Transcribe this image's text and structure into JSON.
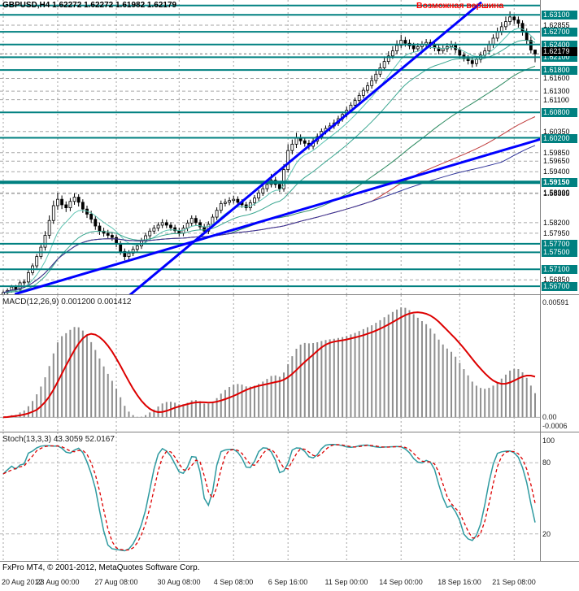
{
  "header": {
    "symbol_period": "GBPUSD,H4",
    "ohlc": "1.62272 1.62272 1.61982 1.62179"
  },
  "annotation": {
    "text": "Возможная вершина",
    "color": "#ff0000"
  },
  "footer": {
    "copyright": "FxPro MT4, © 2001-2012, MetaQuotes Software Corp."
  },
  "colors": {
    "hline": "#008080",
    "trend": "#0000ff",
    "grid": "#a6a6a6",
    "current_line": "#707070",
    "bull": "#ffffff",
    "bear": "#000000",
    "wick": "#000000",
    "border": "#808080",
    "macd_hist": "#8f8f8f",
    "macd_signal": "#dd0000",
    "macd_zero": "#b0b0b0",
    "stoch_main": "#2e9aa0",
    "stoch_signal": "#dd0000",
    "stoch_level": "#b5b5b5"
  },
  "price_axis": {
    "min": 1.5651,
    "max": 1.6345,
    "labels": [
      {
        "p": 1.6332,
        "t": "",
        "s": "l"
      },
      {
        "p": 1.631,
        "t": "1.63100",
        "s": "l"
      },
      {
        "p": 1.62855,
        "t": "1.62855",
        "s": "g"
      },
      {
        "p": 1.627,
        "t": "1.62700",
        "s": "l"
      },
      {
        "p": 1.624,
        "t": "1.62400",
        "s": "l"
      },
      {
        "p": 1.62179,
        "t": "1.62179",
        "s": "c"
      },
      {
        "p": 1.621,
        "t": "1.62100",
        "s": "l"
      },
      {
        "p": 1.618,
        "t": "1.61800",
        "s": "l"
      },
      {
        "p": 1.616,
        "t": "1.61600",
        "s": "g"
      },
      {
        "p": 1.613,
        "t": "1.61300",
        "s": "g"
      },
      {
        "p": 1.611,
        "t": "1.61100",
        "s": "g"
      },
      {
        "p": 1.608,
        "t": "1.60800",
        "s": "l"
      },
      {
        "p": 1.6035,
        "t": "1.60350",
        "s": "g"
      },
      {
        "p": 1.602,
        "t": "1.60200",
        "s": "l"
      },
      {
        "p": 1.5985,
        "t": "1.59850",
        "s": "g"
      },
      {
        "p": 1.5965,
        "t": "1.59650",
        "s": "g"
      },
      {
        "p": 1.594,
        "t": "1.59400",
        "s": "g"
      },
      {
        "p": 1.5915,
        "t": "1.59150",
        "s": "b"
      },
      {
        "p": 1.589,
        "t": "1.58900",
        "s": "g"
      },
      {
        "p": 1.58885,
        "t": "1.58885",
        "s": "g"
      },
      {
        "p": 1.582,
        "t": "1.58200",
        "s": "g"
      },
      {
        "p": 1.5795,
        "t": "1.57950",
        "s": "g"
      },
      {
        "p": 1.577,
        "t": "1.57700",
        "s": "l"
      },
      {
        "p": 1.575,
        "t": "1.57500",
        "s": "l"
      },
      {
        "p": 1.571,
        "t": "1.57100",
        "s": "l"
      },
      {
        "p": 1.5685,
        "t": "1.56850",
        "s": "g"
      },
      {
        "p": 1.567,
        "t": "1.56700",
        "s": "l"
      }
    ]
  },
  "time_axis": [
    {
      "t": "20 Aug 2012",
      "i": 0
    },
    {
      "t": "23 Aug 00:00",
      "i": 13
    },
    {
      "t": "27 Aug 08:00",
      "i": 27
    },
    {
      "t": "30 Aug 08:00",
      "i": 42
    },
    {
      "t": "4 Sep 08:00",
      "i": 55
    },
    {
      "t": "6 Sep 16:00",
      "i": 68
    },
    {
      "t": "11 Sep 00:00",
      "i": 82
    },
    {
      "t": "14 Sep 00:00",
      "i": 95
    },
    {
      "t": "18 Sep 16:00",
      "i": 109
    },
    {
      "t": "21 Sep 08:00",
      "i": 122
    }
  ],
  "chart_data": {
    "type": "candlestick",
    "symbol": "GBPUSD",
    "timeframe": "H4",
    "title": "GBPUSD,H4 1.62272 1.62272 1.61982 1.62179",
    "candles": [
      [
        1.5648,
        1.566,
        1.5643,
        1.5655
      ],
      [
        1.5655,
        1.5665,
        1.565,
        1.566
      ],
      [
        1.566,
        1.5673,
        1.5655,
        1.5668
      ],
      [
        1.5668,
        1.5673,
        1.5657,
        1.5662
      ],
      [
        1.5662,
        1.5683,
        1.5657,
        1.5678
      ],
      [
        1.5678,
        1.5686,
        1.5672,
        1.568
      ],
      [
        1.568,
        1.5708,
        1.5675,
        1.5702
      ],
      [
        1.5702,
        1.5724,
        1.5696,
        1.5718
      ],
      [
        1.5718,
        1.5746,
        1.5712,
        1.574
      ],
      [
        1.574,
        1.5768,
        1.5734,
        1.5762
      ],
      [
        1.5762,
        1.58,
        1.5754,
        1.579
      ],
      [
        1.579,
        1.5837,
        1.5782,
        1.5825
      ],
      [
        1.5825,
        1.5872,
        1.5817,
        1.586
      ],
      [
        1.586,
        1.589,
        1.585,
        1.5875
      ],
      [
        1.5875,
        1.5884,
        1.5852,
        1.5862
      ],
      [
        1.5862,
        1.587,
        1.5845,
        1.5855
      ],
      [
        1.5855,
        1.5878,
        1.5847,
        1.587
      ],
      [
        1.587,
        1.5889,
        1.5862,
        1.588
      ],
      [
        1.588,
        1.5887,
        1.5858,
        1.5868
      ],
      [
        1.5868,
        1.5875,
        1.5843,
        1.5852
      ],
      [
        1.5852,
        1.586,
        1.5831,
        1.584
      ],
      [
        1.584,
        1.5848,
        1.5819,
        1.5828
      ],
      [
        1.5828,
        1.5836,
        1.5803,
        1.5812
      ],
      [
        1.5812,
        1.582,
        1.5791,
        1.58
      ],
      [
        1.58,
        1.5808,
        1.5787,
        1.5795
      ],
      [
        1.5795,
        1.5803,
        1.5782,
        1.579
      ],
      [
        1.579,
        1.5798,
        1.5777,
        1.5785
      ],
      [
        1.5785,
        1.5792,
        1.5762,
        1.577
      ],
      [
        1.577,
        1.5777,
        1.5744,
        1.5752
      ],
      [
        1.5752,
        1.5759,
        1.5731,
        1.574
      ],
      [
        1.574,
        1.5755,
        1.5733,
        1.5748
      ],
      [
        1.5748,
        1.5764,
        1.5741,
        1.5757
      ],
      [
        1.5757,
        1.5772,
        1.575,
        1.5765
      ],
      [
        1.5765,
        1.5784,
        1.5758,
        1.5777
      ],
      [
        1.5777,
        1.5796,
        1.577,
        1.5789
      ],
      [
        1.5789,
        1.5807,
        1.5782,
        1.58
      ],
      [
        1.58,
        1.5814,
        1.5793,
        1.5807
      ],
      [
        1.5807,
        1.5821,
        1.58,
        1.5814
      ],
      [
        1.5814,
        1.5828,
        1.5807,
        1.582
      ],
      [
        1.582,
        1.5827,
        1.5807,
        1.5814
      ],
      [
        1.5814,
        1.5821,
        1.5801,
        1.5808
      ],
      [
        1.5808,
        1.5815,
        1.5794,
        1.5801
      ],
      [
        1.5801,
        1.5808,
        1.5788,
        1.5795
      ],
      [
        1.5795,
        1.5814,
        1.5788,
        1.5807
      ],
      [
        1.5807,
        1.5826,
        1.58,
        1.5819
      ],
      [
        1.5819,
        1.5837,
        1.5812,
        1.583
      ],
      [
        1.583,
        1.5837,
        1.5813,
        1.582
      ],
      [
        1.582,
        1.5827,
        1.5803,
        1.581
      ],
      [
        1.581,
        1.5817,
        1.5793,
        1.58
      ],
      [
        1.58,
        1.5823,
        1.5793,
        1.5816
      ],
      [
        1.5816,
        1.584,
        1.5809,
        1.5833
      ],
      [
        1.5833,
        1.5856,
        1.5826,
        1.5849
      ],
      [
        1.5849,
        1.5872,
        1.5842,
        1.5865
      ],
      [
        1.5865,
        1.5876,
        1.5858,
        1.5868
      ],
      [
        1.5868,
        1.588,
        1.5861,
        1.5872
      ],
      [
        1.5872,
        1.5883,
        1.5865,
        1.5875
      ],
      [
        1.5875,
        1.5882,
        1.5861,
        1.5868
      ],
      [
        1.5868,
        1.5875,
        1.5855,
        1.5862
      ],
      [
        1.5862,
        1.5869,
        1.5848,
        1.5855
      ],
      [
        1.5855,
        1.5874,
        1.5848,
        1.5867
      ],
      [
        1.5867,
        1.5885,
        1.586,
        1.5878
      ],
      [
        1.5878,
        1.5897,
        1.5871,
        1.589
      ],
      [
        1.589,
        1.5908,
        1.5883,
        1.59
      ],
      [
        1.59,
        1.5918,
        1.5893,
        1.591
      ],
      [
        1.591,
        1.5935,
        1.5903,
        1.592
      ],
      [
        1.592,
        1.5928,
        1.5902,
        1.591
      ],
      [
        1.591,
        1.5918,
        1.5892,
        1.59
      ],
      [
        1.59,
        1.5958,
        1.5893,
        1.5945
      ],
      [
        1.5945,
        1.6005,
        1.5938,
        1.599
      ],
      [
        1.599,
        1.6016,
        1.5981,
        1.6005
      ],
      [
        1.6005,
        1.6032,
        1.5996,
        1.602
      ],
      [
        1.602,
        1.6028,
        1.6004,
        1.6013
      ],
      [
        1.6013,
        1.6021,
        1.5999,
        1.6007
      ],
      [
        1.6007,
        1.6015,
        1.5992,
        1.6
      ],
      [
        1.6,
        1.6019,
        1.5993,
        1.6012
      ],
      [
        1.6012,
        1.603,
        1.6005,
        1.6023
      ],
      [
        1.6023,
        1.6042,
        1.6016,
        1.6035
      ],
      [
        1.6035,
        1.6049,
        1.6028,
        1.6042
      ],
      [
        1.6042,
        1.6056,
        1.6035,
        1.6048
      ],
      [
        1.6048,
        1.6063,
        1.6041,
        1.6055
      ],
      [
        1.6055,
        1.6072,
        1.6048,
        1.6065
      ],
      [
        1.6065,
        1.6082,
        1.6058,
        1.6075
      ],
      [
        1.6075,
        1.6093,
        1.6068,
        1.6085
      ],
      [
        1.6085,
        1.6104,
        1.6078,
        1.6097
      ],
      [
        1.6097,
        1.6115,
        1.609,
        1.6108
      ],
      [
        1.6108,
        1.6127,
        1.6101,
        1.612
      ],
      [
        1.612,
        1.6139,
        1.6113,
        1.6132
      ],
      [
        1.6132,
        1.6151,
        1.6125,
        1.6143
      ],
      [
        1.6143,
        1.6167,
        1.6136,
        1.6155
      ],
      [
        1.6155,
        1.618,
        1.6148,
        1.617
      ],
      [
        1.617,
        1.6196,
        1.6163,
        1.6185
      ],
      [
        1.6185,
        1.6212,
        1.6178,
        1.62
      ],
      [
        1.62,
        1.6224,
        1.6193,
        1.6213
      ],
      [
        1.6213,
        1.6236,
        1.6206,
        1.6225
      ],
      [
        1.6225,
        1.625,
        1.6218,
        1.6238
      ],
      [
        1.6238,
        1.6263,
        1.6231,
        1.625
      ],
      [
        1.625,
        1.6258,
        1.6235,
        1.6243
      ],
      [
        1.6243,
        1.6252,
        1.6229,
        1.6237
      ],
      [
        1.6237,
        1.6244,
        1.6222,
        1.623
      ],
      [
        1.623,
        1.6243,
        1.6223,
        1.6235
      ],
      [
        1.6235,
        1.6248,
        1.6228,
        1.624
      ],
      [
        1.624,
        1.6253,
        1.6233,
        1.6245
      ],
      [
        1.6245,
        1.6252,
        1.623,
        1.6238
      ],
      [
        1.6238,
        1.6246,
        1.6224,
        1.6232
      ],
      [
        1.6232,
        1.6239,
        1.6217,
        1.6225
      ],
      [
        1.6225,
        1.6238,
        1.6218,
        1.623
      ],
      [
        1.623,
        1.6243,
        1.6222,
        1.6235
      ],
      [
        1.6235,
        1.6249,
        1.6227,
        1.624
      ],
      [
        1.624,
        1.6246,
        1.622,
        1.6228
      ],
      [
        1.6228,
        1.6234,
        1.6207,
        1.6215
      ],
      [
        1.6215,
        1.6222,
        1.62,
        1.6208
      ],
      [
        1.6208,
        1.6215,
        1.6193,
        1.6202
      ],
      [
        1.6202,
        1.6209,
        1.6186,
        1.6195
      ],
      [
        1.6195,
        1.6213,
        1.6188,
        1.6205
      ],
      [
        1.6205,
        1.6223,
        1.6197,
        1.6215
      ],
      [
        1.6215,
        1.6233,
        1.6207,
        1.6225
      ],
      [
        1.6225,
        1.6249,
        1.6217,
        1.624
      ],
      [
        1.624,
        1.6264,
        1.6232,
        1.6255
      ],
      [
        1.6255,
        1.628,
        1.6247,
        1.627
      ],
      [
        1.627,
        1.6293,
        1.6262,
        1.6282
      ],
      [
        1.6282,
        1.6306,
        1.6274,
        1.6294
      ],
      [
        1.6294,
        1.6318,
        1.6286,
        1.6305
      ],
      [
        1.6305,
        1.6312,
        1.6288,
        1.6298
      ],
      [
        1.6298,
        1.6306,
        1.628,
        1.629
      ],
      [
        1.629,
        1.6297,
        1.6261,
        1.627
      ],
      [
        1.627,
        1.6278,
        1.624,
        1.625
      ],
      [
        1.625,
        1.6259,
        1.6219,
        1.6227
      ],
      [
        1.62272,
        1.62272,
        1.61982,
        1.62179
      ]
    ],
    "moving_averages": [
      {
        "period": 8,
        "method": "ema",
        "color": "#5ec4b2",
        "width": 1
      },
      {
        "period": 21,
        "method": "ema",
        "color": "#3aa690",
        "width": 1
      },
      {
        "period": 55,
        "method": "sma",
        "color": "#2c8a60",
        "width": 1
      },
      {
        "period": 89,
        "method": "sma",
        "color": "#c03a3a",
        "width": 1
      },
      {
        "period": 120,
        "method": "sma",
        "color": "#30349a",
        "width": 1
      }
    ],
    "trendlines": [
      {
        "name": "steep-uptrend",
        "i1": 28,
        "p1": 1.5631,
        "i2": 114,
        "p2": 1.6338,
        "width": 3
      },
      {
        "name": "shallow-uptrend",
        "i1": 3,
        "p1": 1.5652,
        "i2": 137,
        "p2": 1.6042,
        "width": 3
      }
    ],
    "macd": {
      "label": "MACD(12,26,9)",
      "values": "0.001200 0.001412",
      "fast": 12,
      "slow": 26,
      "signal_period": 9,
      "scale_top": "0.00591",
      "scale_zero": "0.00",
      "scale_bottom": "-0.0006"
    },
    "stoch": {
      "label": "Stoch(13,3,3)",
      "values": "43.3059 52.0167",
      "k": 13,
      "d": 3,
      "slowing": 3,
      "levels": [
        80,
        20
      ],
      "scale": [
        "100",
        "80",
        "20"
      ]
    }
  }
}
